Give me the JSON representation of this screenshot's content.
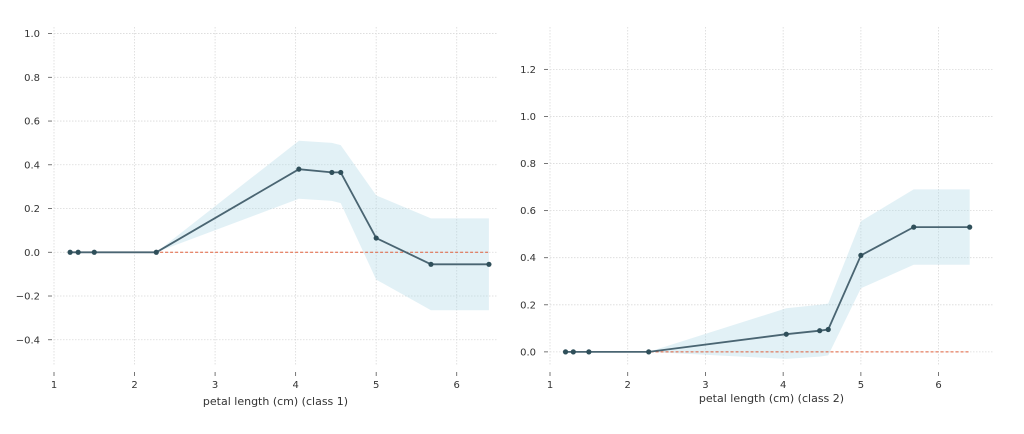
{
  "chart_data": [
    {
      "type": "line",
      "xlabel": "petal length (cm) (class 1)",
      "ylabel": "",
      "xlim": [
        1.0,
        6.5
      ],
      "ylim": [
        -0.52,
        1.03
      ],
      "xticks": [
        1,
        2,
        3,
        4,
        5,
        6
      ],
      "yticks": [
        -0.4,
        -0.2,
        0.0,
        0.2,
        0.4,
        0.6,
        0.8,
        1.0
      ],
      "ytick_labels": [
        "−0.4",
        "−0.2",
        "0.0",
        "0.2",
        "0.4",
        "0.6",
        "0.8",
        "1.0"
      ],
      "grid": true,
      "reference_line": 0.0,
      "series": [
        {
          "x": [
            1.2,
            1.3,
            1.5,
            2.27,
            4.04,
            4.45,
            4.56,
            5.0,
            5.68,
            6.4
          ],
          "y": [
            0.0,
            0.0,
            0.0,
            0.0,
            0.38,
            0.365,
            0.365,
            0.065,
            -0.055,
            -0.055
          ],
          "upper": [
            0.0,
            0.0,
            0.0,
            0.0,
            0.51,
            0.5,
            0.49,
            0.26,
            0.155,
            0.155
          ],
          "lower": [
            0.0,
            0.0,
            0.0,
            0.0,
            0.245,
            0.235,
            0.225,
            -0.125,
            -0.265,
            -0.265
          ]
        }
      ]
    },
    {
      "type": "line",
      "xlabel": "petal length (cm) (class 2)",
      "ylabel": "",
      "xlim": [
        1.0,
        6.7
      ],
      "ylim": [
        -0.06,
        1.38
      ],
      "xticks": [
        1,
        2,
        3,
        4,
        5,
        6
      ],
      "yticks": [
        0.0,
        0.2,
        0.4,
        0.6,
        0.8,
        1.0,
        1.2
      ],
      "ytick_labels": [
        "0.0",
        "0.2",
        "0.4",
        "0.6",
        "0.8",
        "1.0",
        "1.2"
      ],
      "grid": true,
      "reference_line": 0.0,
      "series": [
        {
          "x": [
            1.2,
            1.3,
            1.5,
            2.27,
            4.04,
            4.47,
            4.58,
            5.0,
            5.68,
            6.4
          ],
          "y": [
            0.0,
            0.0,
            0.0,
            0.0,
            0.075,
            0.09,
            0.095,
            0.41,
            0.53,
            0.53
          ],
          "upper": [
            0.0,
            0.0,
            0.0,
            0.0,
            0.185,
            0.2,
            0.205,
            0.555,
            0.69,
            0.69
          ],
          "lower": [
            0.0,
            0.0,
            0.0,
            0.0,
            -0.03,
            -0.02,
            -0.015,
            0.27,
            0.37,
            0.37
          ]
        }
      ]
    }
  ]
}
